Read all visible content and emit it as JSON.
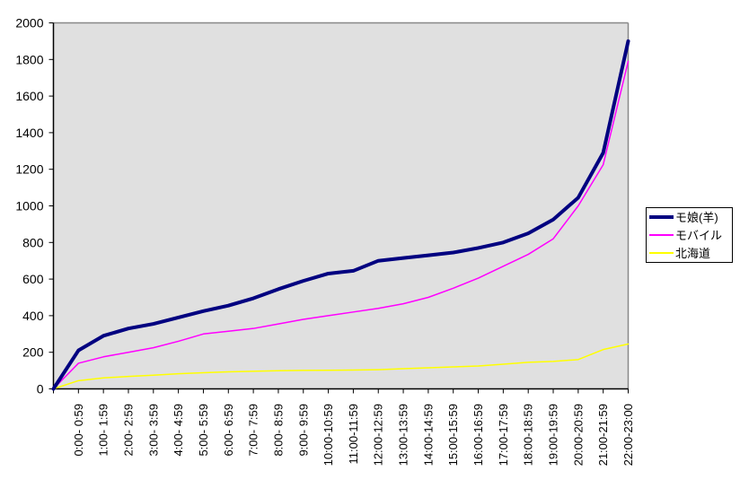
{
  "chart_data": {
    "type": "line",
    "title": "",
    "plot_bg": "#E0E0E0",
    "plot_border_color": "#888888",
    "axis_color": "#000000",
    "ylim": [
      0,
      2000
    ],
    "y_ticks": [
      0,
      200,
      400,
      600,
      800,
      1000,
      1200,
      1400,
      1600,
      1800,
      2000
    ],
    "grid": false,
    "legend_position": "right",
    "origin_note": "values[0] is an unlabeled origin point (0) on the y-axis; values[i>0] align with categories[i-1]",
    "categories": [
      "0:00- 0:59",
      "1:00- 1:59",
      "2:00- 2:59",
      "3:00- 3:59",
      "4:00- 4:59",
      "5:00- 5:59",
      "6:00- 6:59",
      "7:00- 7:59",
      "8:00- 8:59",
      "9:00- 9:59",
      "10:00-10:59",
      "11:00-11:59",
      "12:00-12:59",
      "13:00-13:59",
      "14:00-14:59",
      "15:00-15:59",
      "16:00-16:59",
      "17:00-17:59",
      "18:00-18:59",
      "19:00-19:59",
      "20:00-20:59",
      "21:00-21:59",
      "22:00-23:00"
    ],
    "series": [
      {
        "name": "モ娘(羊)",
        "color": "#000080",
        "line_width": 4,
        "values": [
          0,
          210,
          290,
          330,
          355,
          390,
          425,
          455,
          495,
          545,
          590,
          630,
          645,
          700,
          715,
          730,
          745,
          770,
          800,
          850,
          925,
          1045,
          1290,
          1900
        ]
      },
      {
        "name": "モバイル",
        "color": "#FF00FF",
        "line_width": 1.5,
        "values": [
          0,
          140,
          175,
          200,
          225,
          260,
          300,
          315,
          330,
          355,
          380,
          400,
          420,
          440,
          465,
          500,
          550,
          605,
          670,
          735,
          820,
          1000,
          1225,
          1790
        ]
      },
      {
        "name": "北海道",
        "color": "#FFFF00",
        "line_width": 1.5,
        "values": [
          0,
          45,
          60,
          68,
          75,
          83,
          88,
          93,
          96,
          99,
          101,
          102,
          103,
          105,
          110,
          115,
          120,
          125,
          135,
          145,
          150,
          160,
          215,
          245
        ]
      }
    ]
  },
  "legend": {
    "items": [
      {
        "label": "モ娘(羊)"
      },
      {
        "label": "モバイル"
      },
      {
        "label": "北海道"
      }
    ]
  }
}
